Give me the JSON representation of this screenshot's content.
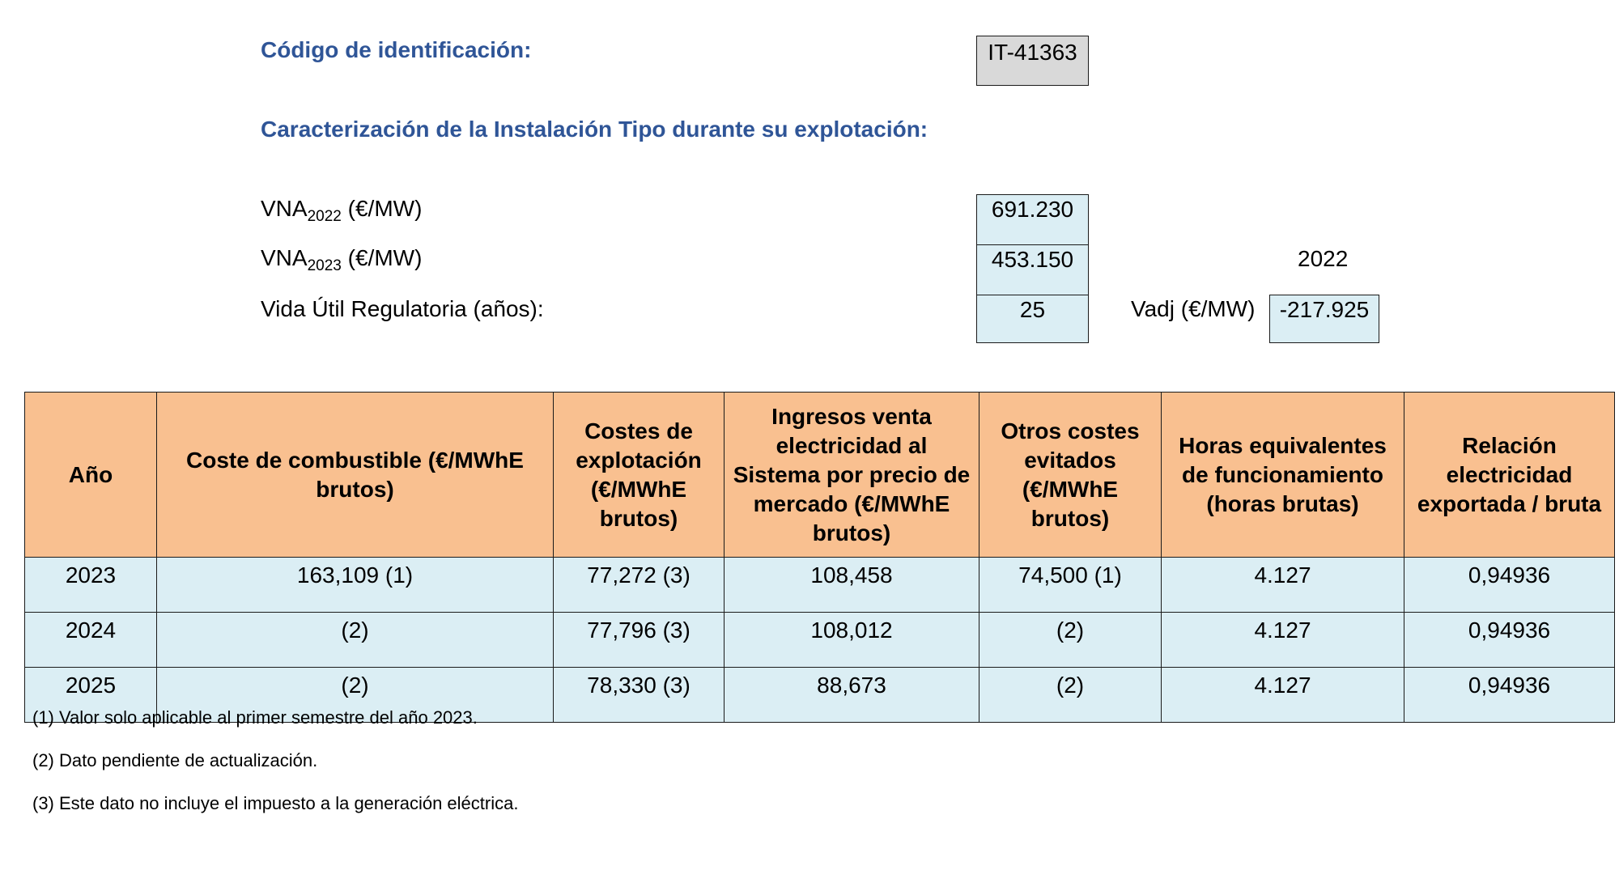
{
  "header": {
    "id_label": "Código de identificación:",
    "id_value": "IT-41363",
    "section_title": "Caracterización de la Instalación Tipo durante su explotación:"
  },
  "params": {
    "vna2022": {
      "label_main": "VNA",
      "label_sub": "2022",
      "label_unit": " (€/MW)",
      "value": "691.230"
    },
    "vna2023": {
      "label_main": "VNA",
      "label_sub": "2023",
      "label_unit": " (€/MW)",
      "value": "453.150"
    },
    "vida": {
      "label": "Vida Útil Regulatoria (años):",
      "value": "25"
    },
    "vadj": {
      "year": "2022",
      "label": "Vadj (€/MW)",
      "value": "-217.925"
    }
  },
  "table": {
    "headers": [
      "Año",
      "Coste de combustible (€/MWhE brutos)",
      "Costes de explotación (€/MWhE brutos)",
      "Ingresos venta electricidad al Sistema por precio de mercado (€/MWhE brutos)",
      "Otros costes evitados (€/MWhE brutos)",
      "Horas equivalentes de funcionamiento (horas brutas)",
      "Relación electricidad exportada / bruta"
    ],
    "rows": [
      [
        "2023",
        "163,109 (1)",
        "77,272 (3)",
        "108,458",
        "74,500 (1)",
        "4.127",
        "0,94936"
      ],
      [
        "2024",
        "(2)",
        "77,796 (3)",
        "108,012",
        "(2)",
        "4.127",
        "0,94936"
      ],
      [
        "2025",
        "(2)",
        "78,330 (3)",
        "88,673",
        "(2)",
        "4.127",
        "0,94936"
      ]
    ]
  },
  "notes": [
    "(1) Valor solo aplicable al primer semestre del año 2023.",
    "(2) Dato pendiente de actualización.",
    "(3) Este dato no incluye el impuesto a la generación eléctrica."
  ]
}
